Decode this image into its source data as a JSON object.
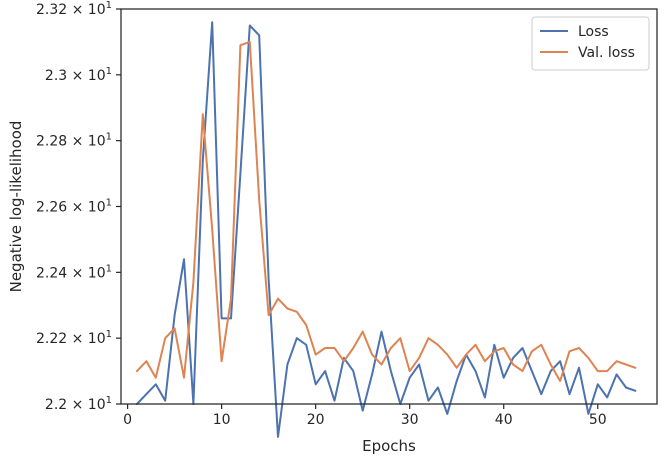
{
  "chart_data": {
    "type": "line",
    "xlabel": "Epochs",
    "ylabel": "Negative log-likelihood",
    "xlim": [
      -0.7,
      56.3
    ],
    "ylim": [
      22.0,
      23.2
    ],
    "xticks": [
      0,
      10,
      20,
      30,
      40,
      50
    ],
    "xtick_labels": [
      "0",
      "10",
      "20",
      "30",
      "40",
      "50"
    ],
    "yticks": [
      22.0,
      22.2,
      22.4,
      22.6,
      22.8,
      23.0,
      23.2
    ],
    "ytick_labels": [
      {
        "base": "2.2",
        "exp": "1"
      },
      {
        "base": "2.22",
        "exp": "1"
      },
      {
        "base": "2.24",
        "exp": "1"
      },
      {
        "base": "2.26",
        "exp": "1"
      },
      {
        "base": "2.28",
        "exp": "1"
      },
      {
        "base": "2.3",
        "exp": "1"
      },
      {
        "base": "2.32",
        "exp": "1"
      }
    ],
    "ytick_times": "× 10",
    "grid": false,
    "legend_position": "top-right",
    "x": [
      1,
      2,
      3,
      4,
      5,
      6,
      7,
      8,
      9,
      10,
      11,
      12,
      13,
      14,
      15,
      16,
      17,
      18,
      19,
      20,
      21,
      22,
      23,
      24,
      25,
      26,
      27,
      28,
      29,
      30,
      31,
      32,
      33,
      34,
      35,
      36,
      37,
      38,
      39,
      40,
      41,
      42,
      43,
      44,
      45,
      46,
      47,
      48,
      49,
      50,
      51,
      52,
      53,
      54
    ],
    "series": [
      {
        "name": "Loss",
        "color": "#4c72b0",
        "values": [
          22.0,
          22.03,
          22.06,
          22.01,
          22.27,
          22.44,
          22.0,
          22.74,
          23.16,
          22.26,
          22.26,
          22.7,
          23.15,
          23.12,
          22.38,
          21.9,
          22.12,
          22.2,
          22.18,
          22.06,
          22.1,
          22.01,
          22.14,
          22.1,
          21.98,
          22.09,
          22.22,
          22.1,
          22.0,
          22.08,
          22.12,
          22.01,
          22.05,
          21.97,
          22.07,
          22.15,
          22.1,
          22.02,
          22.18,
          22.08,
          22.14,
          22.17,
          22.1,
          22.03,
          22.1,
          22.13,
          22.03,
          22.11,
          21.97,
          22.06,
          22.02,
          22.09,
          22.05,
          22.04
        ]
      },
      {
        "name": "Val. loss",
        "color": "#dd8452",
        "values": [
          22.1,
          22.13,
          22.08,
          22.2,
          22.23,
          22.08,
          22.37,
          22.88,
          22.53,
          22.13,
          22.32,
          23.09,
          23.1,
          22.62,
          22.27,
          22.32,
          22.29,
          22.28,
          22.24,
          22.15,
          22.17,
          22.17,
          22.13,
          22.17,
          22.22,
          22.15,
          22.12,
          22.17,
          22.2,
          22.1,
          22.14,
          22.2,
          22.18,
          22.15,
          22.11,
          22.15,
          22.18,
          22.13,
          22.16,
          22.17,
          22.12,
          22.1,
          22.16,
          22.18,
          22.12,
          22.07,
          22.16,
          22.17,
          22.14,
          22.1,
          22.1,
          22.13,
          22.12,
          22.11
        ]
      }
    ]
  }
}
